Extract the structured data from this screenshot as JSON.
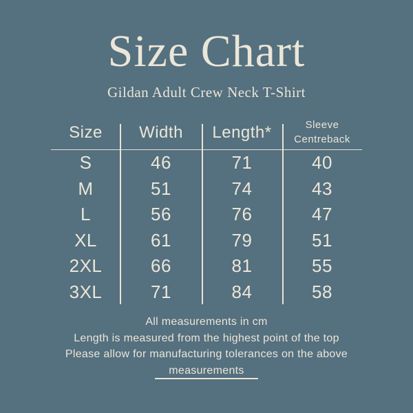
{
  "colors": {
    "background": "#55707e",
    "text": "#eae6d9",
    "lines": "#e9e4d7"
  },
  "header": {
    "title": "Size Chart",
    "subtitle": "Gildan Adult Crew Neck T-Shirt"
  },
  "chart_data": {
    "type": "table",
    "title": "Size Chart",
    "subtitle": "Gildan Adult Crew Neck T-Shirt",
    "units": "cm",
    "columns": [
      "Size",
      "Width",
      "Length*",
      "Sleeve Centreback"
    ],
    "rows": [
      [
        "S",
        "46",
        "71",
        "40"
      ],
      [
        "M",
        "51",
        "74",
        "43"
      ],
      [
        "L",
        "56",
        "76",
        "47"
      ],
      [
        "XL",
        "61",
        "79",
        "51"
      ],
      [
        "2XL",
        "66",
        "81",
        "55"
      ],
      [
        "3XL",
        "71",
        "84",
        "58"
      ]
    ],
    "notes": [
      "All measurements in cm",
      "Length is measured from the highest point of the top",
      "Please allow for manufacturing tolerances on the above measurements"
    ]
  }
}
